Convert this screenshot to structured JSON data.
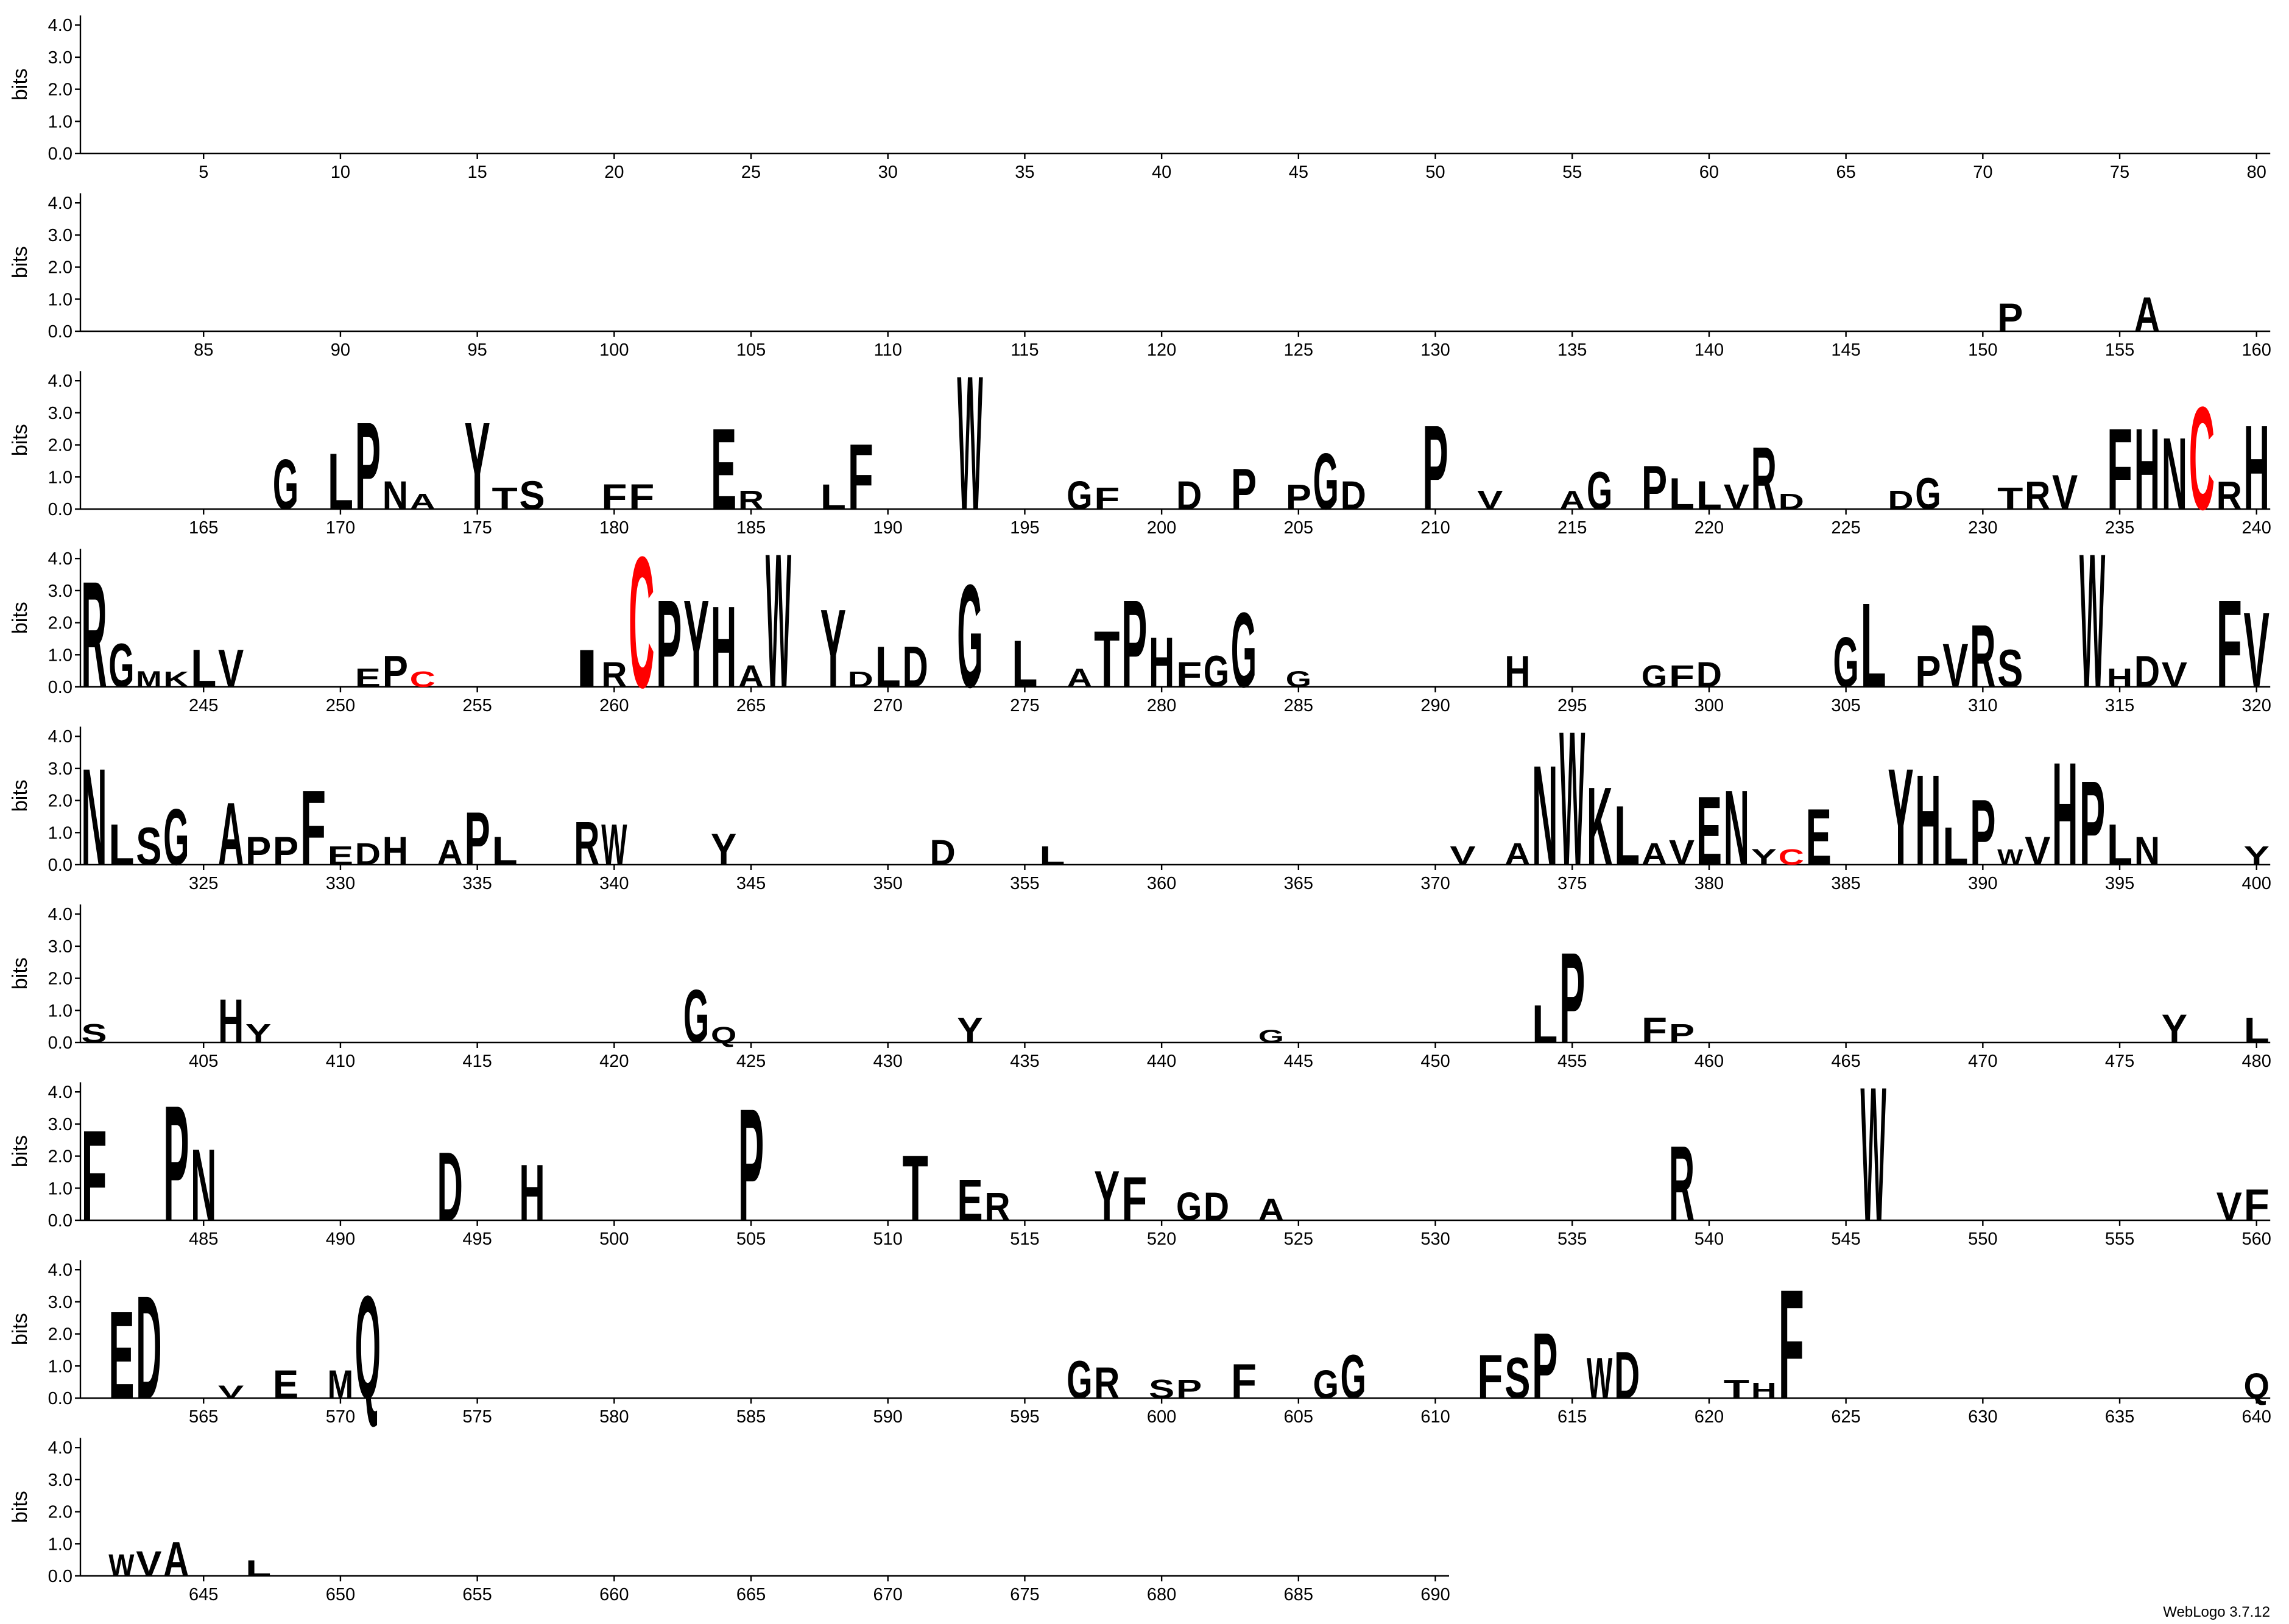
{
  "chart_data": [
    {
      "type": "logo",
      "ylabel": "bits",
      "xlim": [
        0.5,
        80.5
      ],
      "xticks": [
        5,
        10,
        15,
        20,
        25,
        30,
        35,
        40,
        45,
        50,
        55,
        60,
        65,
        70,
        75,
        80
      ],
      "ylim": [
        0,
        4.3
      ],
      "yticks": [
        {
          "value": 0,
          "label": "0.0"
        },
        {
          "value": 1,
          "label": "1.0"
        },
        {
          "value": 2,
          "label": "2.0"
        },
        {
          "value": 3,
          "label": "3.0"
        },
        {
          "value": 4,
          "label": "4.0"
        }
      ],
      "x": [],
      "letters": [],
      "values": [],
      "color": "#000000",
      "highlight": {
        "letter": "C",
        "color": "#ff0000"
      }
    },
    {
      "type": "logo",
      "ylabel": "bits",
      "xlim": [
        80.5,
        160.5
      ],
      "xticks": [
        85,
        90,
        95,
        100,
        105,
        110,
        115,
        120,
        125,
        130,
        135,
        140,
        145,
        150,
        155,
        160
      ],
      "ylim": [
        0,
        4.3
      ],
      "yticks": [
        {
          "value": 0,
          "label": "0.0"
        },
        {
          "value": 1,
          "label": "1.0"
        },
        {
          "value": 2,
          "label": "2.0"
        },
        {
          "value": 3,
          "label": "3.0"
        },
        {
          "value": 4,
          "label": "4.0"
        }
      ],
      "x": [
        151,
        156
      ],
      "letters": [
        "P",
        "A"
      ],
      "values": [
        0.9,
        1.1
      ],
      "color": "#000000",
      "highlight": {
        "letter": "C",
        "color": "#ff0000"
      }
    },
    {
      "type": "logo",
      "ylabel": "bits",
      "xlim": [
        160.5,
        240.5
      ],
      "xticks": [
        165,
        170,
        175,
        180,
        185,
        190,
        195,
        200,
        205,
        210,
        215,
        220,
        225,
        230,
        235,
        240
      ],
      "ylim": [
        0,
        4.3
      ],
      "yticks": [
        {
          "value": 0,
          "label": "0.0"
        },
        {
          "value": 1,
          "label": "1.0"
        },
        {
          "value": 2,
          "label": "2.0"
        },
        {
          "value": 3,
          "label": "3.0"
        },
        {
          "value": 4,
          "label": "4.0"
        }
      ],
      "x": [
        168,
        170,
        171,
        172,
        173,
        175,
        176,
        177,
        180,
        181,
        184,
        185,
        188,
        189,
        193,
        197,
        198,
        201,
        203,
        205,
        206,
        207,
        210,
        212,
        215,
        216,
        218,
        219,
        220,
        221,
        222,
        223,
        227,
        228,
        231,
        232,
        233,
        235,
        236,
        237,
        238,
        239,
        240
      ],
      "letters": [
        "G",
        "L",
        "P",
        "N",
        "A",
        "Y",
        "T",
        "S",
        "F",
        "F",
        "E",
        "R",
        "L",
        "F",
        "W",
        "G",
        "F",
        "D",
        "P",
        "P",
        "G",
        "D",
        "P",
        "V",
        "A",
        "G",
        "P",
        "L",
        "L",
        "V",
        "R",
        "D",
        "D",
        "G",
        "T",
        "R",
        "V",
        "F",
        "H",
        "N",
        "C",
        "R",
        "H"
      ],
      "values": [
        1.6,
        1.8,
        2.8,
        0.9,
        0.5,
        2.8,
        0.7,
        0.9,
        0.8,
        0.8,
        2.6,
        0.6,
        0.8,
        2.1,
        4.3,
        0.9,
        0.7,
        0.9,
        1.3,
        0.8,
        1.8,
        0.9,
        2.7,
        0.6,
        0.6,
        1.2,
        1.4,
        1.0,
        0.9,
        0.8,
        2.0,
        0.5,
        0.6,
        1.0,
        0.7,
        0.9,
        1.1,
        2.6,
        2.6,
        2.3,
        3.3,
        0.9,
        2.7
      ],
      "color": "#000000",
      "highlight": {
        "letter": "C",
        "color": "#ff0000"
      }
    },
    {
      "type": "logo",
      "ylabel": "bits",
      "xlim": [
        240.5,
        320.5
      ],
      "xticks": [
        245,
        250,
        255,
        260,
        265,
        270,
        275,
        280,
        285,
        290,
        295,
        300,
        305,
        310,
        315,
        320
      ],
      "ylim": [
        0,
        4.3
      ],
      "yticks": [
        {
          "value": 0,
          "label": "0.0"
        },
        {
          "value": 1,
          "label": "1.0"
        },
        {
          "value": 2,
          "label": "2.0"
        },
        {
          "value": 3,
          "label": "3.0"
        },
        {
          "value": 4,
          "label": "4.0"
        }
      ],
      "x": [
        241,
        242,
        243,
        244,
        245,
        246,
        251,
        252,
        253,
        259,
        260,
        261,
        262,
        263,
        264,
        265,
        266,
        268,
        269,
        270,
        271,
        273,
        275,
        277,
        278,
        279,
        280,
        281,
        282,
        283,
        285,
        293,
        298,
        299,
        300,
        305,
        306,
        308,
        309,
        310,
        311,
        314,
        315,
        316,
        317,
        319,
        320
      ],
      "letters": [
        "R",
        "G",
        "M",
        "K",
        "L",
        "V",
        "E",
        "P",
        "C",
        "I",
        "R",
        "C",
        "P",
        "Y",
        "H",
        "A",
        "W",
        "Y",
        "D",
        "L",
        "D",
        "G",
        "L",
        "A",
        "T",
        "P",
        "H",
        "F",
        "G",
        "G",
        "G",
        "H",
        "G",
        "F",
        "D",
        "G",
        "L",
        "P",
        "V",
        "R",
        "S",
        "W",
        "H",
        "D",
        "V",
        "F",
        "V"
      ],
      "values": [
        3.4,
        1.4,
        0.5,
        0.5,
        1.2,
        1.2,
        0.6,
        1.0,
        0.5,
        1.2,
        0.8,
        4.2,
        2.8,
        2.8,
        2.6,
        0.7,
        4.3,
        2.5,
        0.5,
        1.3,
        1.3,
        3.3,
        1.5,
        0.6,
        1.8,
        2.8,
        1.6,
        0.8,
        1.0,
        2.4,
        0.5,
        1.0,
        0.7,
        0.7,
        0.8,
        1.6,
        2.7,
        1.0,
        1.4,
        2.0,
        1.2,
        4.3,
        0.6,
        1.0,
        0.8,
        2.8,
        2.4
      ],
      "color": "#000000",
      "highlight": {
        "letter": "C",
        "color": "#ff0000"
      }
    },
    {
      "type": "logo",
      "ylabel": "bits",
      "xlim": [
        320.5,
        400.5
      ],
      "xticks": [
        325,
        330,
        335,
        340,
        345,
        350,
        355,
        360,
        365,
        370,
        375,
        380,
        385,
        390,
        395,
        400
      ],
      "ylim": [
        0,
        4.3
      ],
      "yticks": [
        {
          "value": 0,
          "label": "0.0"
        },
        {
          "value": 1,
          "label": "1.0"
        },
        {
          "value": 2,
          "label": "2.0"
        },
        {
          "value": 3,
          "label": "3.0"
        },
        {
          "value": 4,
          "label": "4.0"
        }
      ],
      "x": [
        321,
        322,
        323,
        324,
        326,
        327,
        328,
        329,
        330,
        331,
        332,
        334,
        335,
        336,
        339,
        340,
        344,
        352,
        356,
        371,
        373,
        374,
        375,
        376,
        377,
        378,
        379,
        380,
        381,
        382,
        383,
        384,
        387,
        388,
        389,
        390,
        391,
        392,
        393,
        394,
        395,
        396,
        400
      ],
      "letters": [
        "N",
        "L",
        "S",
        "G",
        "A",
        "P",
        "P",
        "F",
        "E",
        "D",
        "H",
        "A",
        "P",
        "L",
        "R",
        "W",
        "Y",
        "D",
        "L",
        "V",
        "A",
        "N",
        "W",
        "K",
        "L",
        "A",
        "V",
        "E",
        "N",
        "Y",
        "C",
        "E",
        "Y",
        "H",
        "L",
        "P",
        "W",
        "V",
        "H",
        "P",
        "L",
        "N",
        "Y"
      ],
      "values": [
        3.1,
        1.3,
        1.2,
        1.8,
        2.0,
        0.9,
        0.9,
        2.4,
        0.6,
        0.7,
        0.9,
        0.8,
        1.7,
        0.9,
        1.4,
        1.3,
        1.0,
        0.8,
        0.6,
        0.6,
        0.7,
        3.2,
        4.3,
        2.5,
        1.9,
        0.7,
        0.8,
        2.2,
        2.4,
        0.5,
        0.5,
        1.8,
        3.1,
        2.9,
        1.2,
        2.1,
        0.5,
        0.9,
        3.3,
        2.7,
        1.3,
        0.9,
        0.6
      ],
      "color": "#000000",
      "highlight": {
        "letter": "C",
        "color": "#ff0000"
      }
    },
    {
      "type": "logo",
      "ylabel": "bits",
      "xlim": [
        400.5,
        480.5
      ],
      "xticks": [
        405,
        410,
        415,
        420,
        425,
        430,
        435,
        440,
        445,
        450,
        455,
        460,
        465,
        470,
        475,
        480
      ],
      "ylim": [
        0,
        4.3
      ],
      "yticks": [
        {
          "value": 0,
          "label": "0.0"
        },
        {
          "value": 1,
          "label": "1.0"
        },
        {
          "value": 2,
          "label": "2.0"
        },
        {
          "value": 3,
          "label": "3.0"
        },
        {
          "value": 4,
          "label": "4.0"
        }
      ],
      "x": [
        401,
        406,
        407,
        423,
        424,
        433,
        444,
        454,
        455,
        458,
        459,
        477,
        480
      ],
      "letters": [
        "S",
        "H",
        "Y",
        "G",
        "Q",
        "Y",
        "G",
        "L",
        "P",
        "F",
        "P",
        "Y",
        "L"
      ],
      "values": [
        0.6,
        1.4,
        0.6,
        1.7,
        0.5,
        0.8,
        0.4,
        1.2,
        2.9,
        0.8,
        0.6,
        0.9,
        0.8
      ],
      "color": "#000000",
      "highlight": {
        "letter": "C",
        "color": "#ff0000"
      }
    },
    {
      "type": "logo",
      "ylabel": "bits",
      "xlim": [
        480.5,
        560.5
      ],
      "xticks": [
        485,
        490,
        495,
        500,
        505,
        510,
        515,
        520,
        525,
        530,
        535,
        540,
        545,
        550,
        555,
        560
      ],
      "ylim": [
        0,
        4.3
      ],
      "yticks": [
        {
          "value": 0,
          "label": "0.0"
        },
        {
          "value": 1,
          "label": "1.0"
        },
        {
          "value": 2,
          "label": "2.0"
        },
        {
          "value": 3,
          "label": "3.0"
        },
        {
          "value": 4,
          "label": "4.0"
        }
      ],
      "x": [
        481,
        484,
        485,
        494,
        497,
        505,
        511,
        513,
        514,
        518,
        519,
        521,
        522,
        524,
        539,
        546,
        559,
        560
      ],
      "letters": [
        "F",
        "P",
        "N",
        "D",
        "H",
        "P",
        "T",
        "E",
        "R",
        "Y",
        "F",
        "G",
        "D",
        "A",
        "R",
        "W",
        "V",
        "F"
      ],
      "values": [
        2.9,
        3.7,
        2.3,
        2.2,
        1.8,
        3.6,
        2.1,
        1.3,
        0.9,
        1.6,
        1.4,
        0.9,
        0.9,
        0.7,
        2.4,
        4.3,
        0.9,
        1.0
      ],
      "color": "#000000",
      "highlight": {
        "letter": "C",
        "color": "#ff0000"
      }
    },
    {
      "type": "logo",
      "ylabel": "bits",
      "xlim": [
        560.5,
        640.5
      ],
      "xticks": [
        565,
        570,
        575,
        580,
        585,
        590,
        595,
        600,
        605,
        610,
        615,
        620,
        625,
        630,
        635,
        640
      ],
      "ylim": [
        0,
        4.3
      ],
      "yticks": [
        {
          "value": 0,
          "label": "0.0"
        },
        {
          "value": 1,
          "label": "1.0"
        },
        {
          "value": 2,
          "label": "2.0"
        },
        {
          "value": 3,
          "label": "3.0"
        },
        {
          "value": 4,
          "label": "4.0"
        }
      ],
      "x": [
        562,
        563,
        566,
        568,
        570,
        571,
        597,
        598,
        600,
        601,
        603,
        606,
        607,
        612,
        613,
        614,
        616,
        617,
        621,
        622,
        623,
        640
      ],
      "letters": [
        "E",
        "D",
        "V",
        "E",
        "M",
        "Q",
        "G",
        "R",
        "S",
        "P",
        "F",
        "G",
        "G",
        "F",
        "S",
        "P",
        "W",
        "D",
        "T",
        "H",
        "F",
        "Q"
      ],
      "values": [
        2.8,
        3.3,
        0.4,
        0.9,
        0.9,
        3.3,
        1.2,
        1.0,
        0.6,
        0.6,
        1.1,
        0.9,
        1.4,
        1.4,
        1.3,
        2.1,
        1.3,
        1.5,
        0.6,
        0.5,
        3.5,
        0.8
      ],
      "color": "#000000",
      "highlight": {
        "letter": "C",
        "color": "#ff0000"
      }
    },
    {
      "type": "logo",
      "ylabel": "bits",
      "xlim": [
        640.5,
        690.5
      ],
      "xticks": [
        645,
        650,
        655,
        660,
        665,
        670,
        675,
        680,
        685,
        690
      ],
      "ylim": [
        0,
        4.3
      ],
      "yticks": [
        {
          "value": 0,
          "label": "0.0"
        },
        {
          "value": 1,
          "label": "1.0"
        },
        {
          "value": 2,
          "label": "2.0"
        },
        {
          "value": 3,
          "label": "3.0"
        },
        {
          "value": 4,
          "label": "4.0"
        }
      ],
      "x": [
        642,
        643,
        644,
        647
      ],
      "letters": [
        "W",
        "V",
        "A",
        "L"
      ],
      "values": [
        0.7,
        0.8,
        1.1,
        0.5
      ],
      "color": "#000000",
      "highlight": {
        "letter": "C",
        "color": "#ff0000"
      }
    }
  ],
  "footer": "WebLogo 3.7.12"
}
